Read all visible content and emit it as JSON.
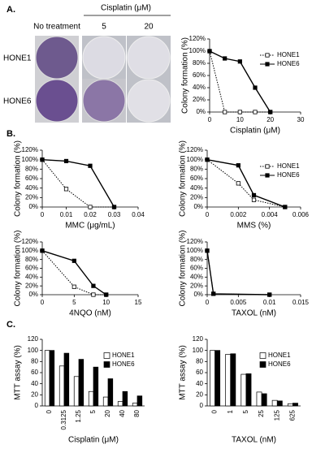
{
  "figure": {
    "panel_labels": [
      "A.",
      "B.",
      "C."
    ],
    "photo_panel": {
      "group_header": "Cisplatin (μM)",
      "columns": [
        "No treatment",
        "5",
        "20"
      ],
      "rows": [
        "HONE1",
        "HONE6"
      ]
    }
  },
  "chart_data": [
    {
      "type": "line",
      "x": [
        0,
        5,
        10,
        15,
        20
      ],
      "xlim": [
        0,
        30
      ],
      "xticks": [
        0,
        10,
        20,
        30
      ],
      "ylim": [
        0,
        120
      ],
      "yticks": [
        {
          "value": 0,
          "label": "0%"
        },
        {
          "value": 20,
          "label": "20%"
        },
        {
          "value": 40,
          "label": "40%"
        },
        {
          "value": 60,
          "label": "60%"
        },
        {
          "value": 80,
          "label": "80%"
        },
        {
          "value": 100,
          "label": "100%"
        },
        {
          "value": 120,
          "label": "120%"
        }
      ],
      "x_label": "Cisplatin (μM)",
      "y_label": "Colony formation (%)",
      "legend": "upper right",
      "series": [
        {
          "name": "HONE1",
          "color": "#000000",
          "line_style": "dotted",
          "marker": "open-square",
          "values": [
            100,
            0,
            0,
            0,
            0
          ]
        },
        {
          "name": "HONE6",
          "color": "#000000",
          "line_style": "solid",
          "marker": "filled-square",
          "values": [
            100,
            88,
            83,
            40,
            0
          ]
        }
      ]
    },
    {
      "type": "line",
      "x": [
        0,
        0.01,
        0.02,
        0.03
      ],
      "xlim": [
        0,
        0.04
      ],
      "xticks": [
        0,
        0.01,
        0.02,
        0.03,
        0.04
      ],
      "ylim": [
        0,
        120
      ],
      "yticks": [
        {
          "value": 0,
          "label": "0%"
        },
        {
          "value": 20,
          "label": "20%"
        },
        {
          "value": 40,
          "label": "40%"
        },
        {
          "value": 60,
          "label": "60%"
        },
        {
          "value": 80,
          "label": "80%"
        },
        {
          "value": 100,
          "label": "100%"
        },
        {
          "value": 120,
          "label": "120%"
        }
      ],
      "x_label": "MMC (μg/mL)",
      "y_label": "Colony formation (%)",
      "series": [
        {
          "color": "#000000",
          "line_style": "dotted",
          "marker": "open-square",
          "values": [
            100,
            38,
            0,
            0
          ]
        },
        {
          "color": "#000000",
          "line_style": "solid",
          "marker": "filled-square",
          "values": [
            100,
            97,
            87,
            0
          ]
        }
      ]
    },
    {
      "type": "line",
      "x": [
        0,
        0.002,
        0.003,
        0.005
      ],
      "xlim": [
        0,
        0.006
      ],
      "xticks": [
        0,
        0.002,
        0.004,
        0.006
      ],
      "ylim": [
        0,
        120
      ],
      "yticks": [
        {
          "value": 0,
          "label": "0%"
        },
        {
          "value": 20,
          "label": "20%"
        },
        {
          "value": 40,
          "label": "40%"
        },
        {
          "value": 60,
          "label": "60%"
        },
        {
          "value": 80,
          "label": "80%"
        },
        {
          "value": 100,
          "label": "100%"
        },
        {
          "value": 120,
          "label": "120%"
        }
      ],
      "x_label": "MMS (%)",
      "y_label": "Colony formation (%)",
      "legend": "upper right",
      "series": [
        {
          "name": "HONE1",
          "color": "#000000",
          "line_style": "dotted",
          "marker": "open-square",
          "values": [
            100,
            50,
            15,
            0
          ]
        },
        {
          "name": "HONE6",
          "color": "#000000",
          "line_style": "solid",
          "marker": "filled-square",
          "values": [
            100,
            88,
            25,
            0
          ]
        }
      ]
    },
    {
      "type": "line",
      "x": [
        0,
        5,
        8,
        10
      ],
      "xlim": [
        0,
        15
      ],
      "xticks": [
        0,
        5,
        10,
        15
      ],
      "ylim": [
        0,
        120
      ],
      "yticks": [
        {
          "value": 0,
          "label": "0%"
        },
        {
          "value": 20,
          "label": "20%"
        },
        {
          "value": 40,
          "label": "40%"
        },
        {
          "value": 60,
          "label": "60%"
        },
        {
          "value": 80,
          "label": "80%"
        },
        {
          "value": 100,
          "label": "100%"
        },
        {
          "value": 120,
          "label": "120%"
        }
      ],
      "x_label": "4NQO (nM)",
      "y_label": "Colony formation (%)",
      "series": [
        {
          "color": "#000000",
          "line_style": "dotted",
          "marker": "open-square",
          "values": [
            100,
            18,
            0,
            0
          ]
        },
        {
          "color": "#000000",
          "line_style": "solid",
          "marker": "filled-square",
          "values": [
            100,
            77,
            20,
            0
          ]
        }
      ]
    },
    {
      "type": "line",
      "x": [
        0,
        0.001,
        0.01
      ],
      "xlim": [
        0,
        0.015
      ],
      "xticks": [
        0,
        0.005,
        0.01,
        0.015
      ],
      "ylim": [
        0,
        120
      ],
      "yticks": [
        {
          "value": 0,
          "label": "0%"
        },
        {
          "value": 20,
          "label": "20%"
        },
        {
          "value": 40,
          "label": "40%"
        },
        {
          "value": 60,
          "label": "60%"
        },
        {
          "value": 80,
          "label": "80%"
        },
        {
          "value": 100,
          "label": "100%"
        },
        {
          "value": 120,
          "label": "120%"
        }
      ],
      "x_label": "TAXOL (nM)",
      "y_label": "Colony formation (%)",
      "series": [
        {
          "color": "#000000",
          "line_style": "dotted",
          "marker": "open-square",
          "values": [
            100,
            2,
            0
          ]
        },
        {
          "color": "#000000",
          "line_style": "solid",
          "marker": "filled-square",
          "values": [
            100,
            2,
            0
          ]
        }
      ]
    },
    {
      "type": "bar",
      "categories": [
        "0",
        "0.3125",
        "1.25",
        "5",
        "20",
        "40",
        "80"
      ],
      "ylim": [
        0,
        120
      ],
      "yticks": [
        0,
        20,
        40,
        60,
        80,
        100,
        120
      ],
      "x_label": "Cisplatin (μM)",
      "y_label": "MTT assay (%)",
      "legend": "upper right",
      "series": [
        {
          "name": "HONE1",
          "color": "#ffffff",
          "values": [
            100,
            72,
            53,
            26,
            16,
            8,
            5
          ]
        },
        {
          "name": "HONE6",
          "color": "#000000",
          "values": [
            100,
            95,
            84,
            70,
            49,
            26,
            18
          ]
        }
      ]
    },
    {
      "type": "bar",
      "categories": [
        "0",
        "1",
        "5",
        "25",
        "125",
        "625"
      ],
      "ylim": [
        0,
        120
      ],
      "yticks": [
        0,
        20,
        40,
        60,
        80,
        100,
        120
      ],
      "x_label": "TAXOL (nM)",
      "y_label": "MTT assay (%)",
      "legend": "upper right",
      "series": [
        {
          "name": "HONE1",
          "color": "#ffffff",
          "values": [
            100,
            93,
            57,
            25,
            10,
            4
          ]
        },
        {
          "name": "HONE6",
          "color": "#000000",
          "values": [
            100,
            94,
            58,
            22,
            9,
            5
          ]
        }
      ]
    }
  ]
}
